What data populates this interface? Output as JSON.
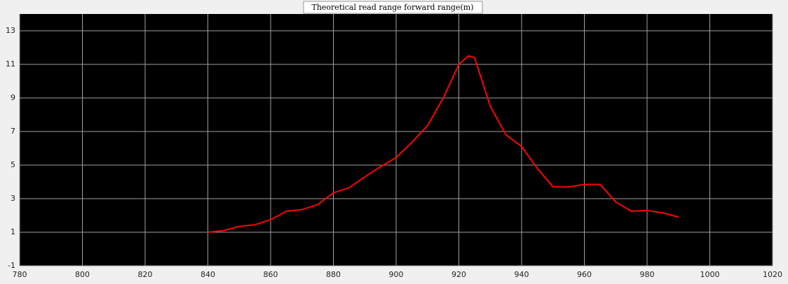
{
  "chart_data": {
    "type": "line",
    "title": "Theoretical read range forward range(m)",
    "x": [
      840,
      845,
      850,
      855,
      860,
      865,
      870,
      875,
      880,
      885,
      890,
      895,
      900,
      905,
      910,
      915,
      920,
      923,
      925,
      930,
      935,
      940,
      945,
      950,
      955,
      960,
      965,
      970,
      975,
      980,
      985,
      990
    ],
    "series": [
      {
        "color": "#ff0000",
        "values": [
          1.0,
          1.1,
          1.35,
          1.45,
          1.75,
          2.25,
          2.35,
          2.65,
          3.35,
          3.65,
          4.3,
          4.9,
          5.45,
          6.35,
          7.35,
          9.0,
          11.0,
          11.5,
          11.4,
          8.5,
          6.8,
          6.1,
          4.8,
          3.7,
          3.7,
          3.85,
          3.85,
          2.8,
          2.25,
          2.3,
          2.15,
          1.9
        ]
      }
    ],
    "xlim": [
      780,
      1020
    ],
    "xticks": [
      780,
      800,
      820,
      840,
      860,
      880,
      900,
      920,
      940,
      960,
      980,
      1000,
      1020
    ],
    "ylim": [
      -1,
      14
    ],
    "yticks": [
      -1,
      1,
      3,
      5,
      7,
      9,
      11,
      13
    ],
    "grid": true
  }
}
